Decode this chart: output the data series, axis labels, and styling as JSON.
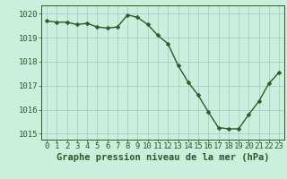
{
  "x": [
    0,
    1,
    2,
    3,
    4,
    5,
    6,
    7,
    8,
    9,
    10,
    11,
    12,
    13,
    14,
    15,
    16,
    17,
    18,
    19,
    20,
    21,
    22,
    23
  ],
  "y": [
    1019.7,
    1019.65,
    1019.65,
    1019.55,
    1019.6,
    1019.45,
    1019.4,
    1019.45,
    1019.95,
    1019.85,
    1019.55,
    1019.1,
    1018.75,
    1017.85,
    1017.15,
    1016.6,
    1015.9,
    1015.25,
    1015.2,
    1015.2,
    1015.8,
    1016.35,
    1017.1,
    1017.55
  ],
  "line_color": "#2d5a27",
  "marker_color": "#2d5a27",
  "bg_color": "#cceedd",
  "grid_color": "#aacccc",
  "xlabel": "Graphe pression niveau de la mer (hPa)",
  "ylim": [
    1014.75,
    1020.35
  ],
  "yticks": [
    1015,
    1016,
    1017,
    1018,
    1019,
    1020
  ],
  "xticks": [
    0,
    1,
    2,
    3,
    4,
    5,
    6,
    7,
    8,
    9,
    10,
    11,
    12,
    13,
    14,
    15,
    16,
    17,
    18,
    19,
    20,
    21,
    22,
    23
  ],
  "axis_color": "#2d5a27",
  "tick_color": "#2d5a27",
  "label_color": "#2d5a27",
  "font_size": 6.5,
  "xlabel_fontsize": 7.5,
  "line_width": 1.0,
  "marker_size": 2.5
}
